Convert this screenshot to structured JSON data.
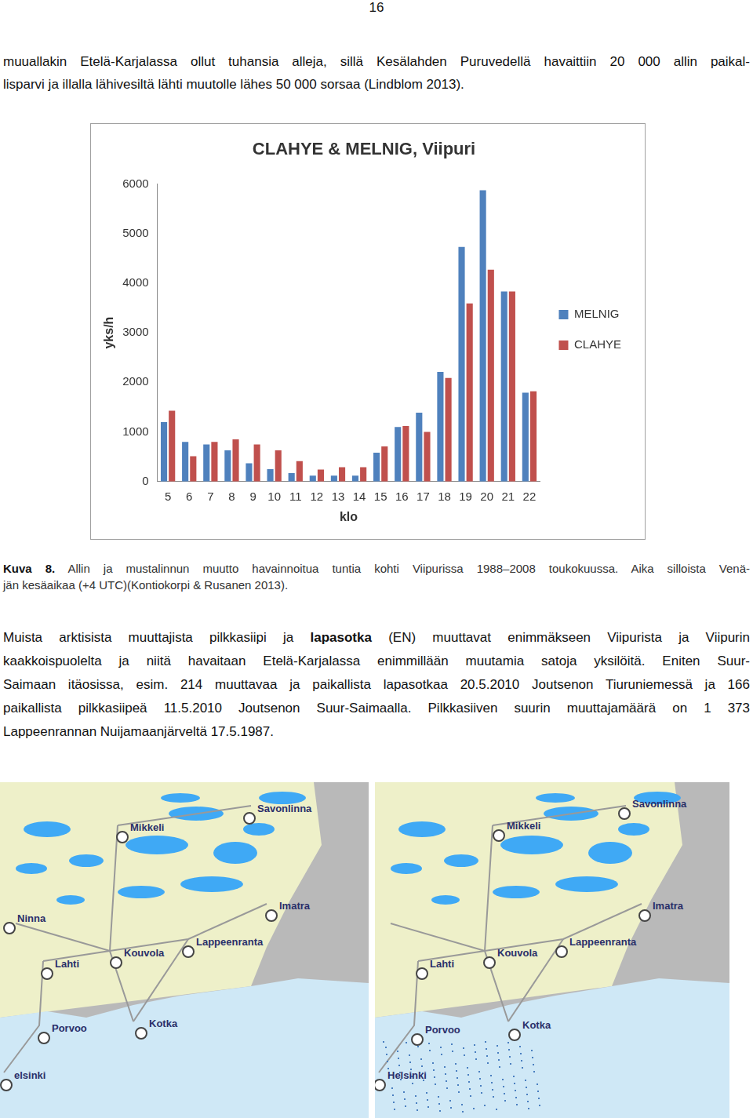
{
  "page_number": "16",
  "paragraph1": {
    "lines": [
      "muuallakin Etelä-Karjalassa ollut tuhansia alleja, sillä Kesälahden Puruvedellä havaittiin 20 000 allin paikal-",
      "lisparvi ja illalla lähivesiltä lähti muutolle lähes 50 000 sorsaa (Lindblom 2013)."
    ]
  },
  "chart_data": {
    "type": "bar",
    "title": "CLAHYE & MELNIG, Viipuri",
    "x_label": "klo",
    "y_label": "yks/h",
    "categories": [
      5,
      6,
      7,
      8,
      9,
      10,
      11,
      12,
      13,
      14,
      15,
      16,
      17,
      18,
      19,
      20,
      21,
      22
    ],
    "series": [
      {
        "name": "MELNIG",
        "color": "#4f81bd",
        "values": [
          1200,
          800,
          750,
          630,
          370,
          250,
          170,
          120,
          120,
          120,
          580,
          1100,
          1390,
          2210,
          4730,
          5870,
          3830,
          1790
        ]
      },
      {
        "name": "CLAHYE",
        "color": "#c0504d",
        "values": [
          1430,
          510,
          800,
          850,
          750,
          630,
          410,
          240,
          290,
          290,
          710,
          1120,
          1000,
          2090,
          3590,
          4270,
          3830,
          1820
        ]
      }
    ],
    "ylim": [
      0,
      6000
    ],
    "yticks": [
      0,
      1000,
      2000,
      3000,
      4000,
      5000,
      6000
    ],
    "grid": false,
    "legend": "right"
  },
  "caption": {
    "label": "Kuva 8.",
    "lines": [
      "Allin ja mustalinnun muutto havainnoitua tuntia kohti Viipurissa 1988–2008 toukokuussa. Aika silloista Venä-",
      "jän kesäaikaa (+4 UTC)(Kontiokorpi & Rusanen 2013)."
    ]
  },
  "paragraph2": {
    "bold": [
      "lapasotka"
    ],
    "lines": [
      "Muista arktisista muuttajista pilkkasiipi ja lapasotka (EN) muuttavat enimmäkseen Viipurista ja Viipurin",
      "kaakkoispuolelta ja niitä havaitaan Etelä-Karjalassa enimmillään muutamia satoja yksilöitä. Eniten Suur-",
      "Saimaan itäosissa, esim. 214 muuttavaa ja paikallista lapasotkaa 20.5.2010 Joutsenon Tiuruniemessä ja 166",
      "paikallista pilkkasiipeä 11.5.2010 Joutsenon Suur-Saimaalla. Pilkkasiiven suurin muuttajamäärä on 1 373",
      "Lappeenrannan Nuijamaanjärveltä 17.5.1987."
    ]
  },
  "maps": [
    {
      "labels": [
        "Savonlinna",
        "Mikkeli",
        "Imatra",
        "Ninna",
        "Lappeenranta",
        "Kouvola",
        "Lahti",
        "Porvoo",
        "Kotka",
        "elsinki"
      ]
    },
    {
      "labels": [
        "Savonlinna",
        "Mikkeli",
        "Imatra",
        "Lappeenranta",
        "Kouvola",
        "Lahti",
        "Porvoo",
        "Kotka",
        "Helsinki"
      ]
    }
  ]
}
